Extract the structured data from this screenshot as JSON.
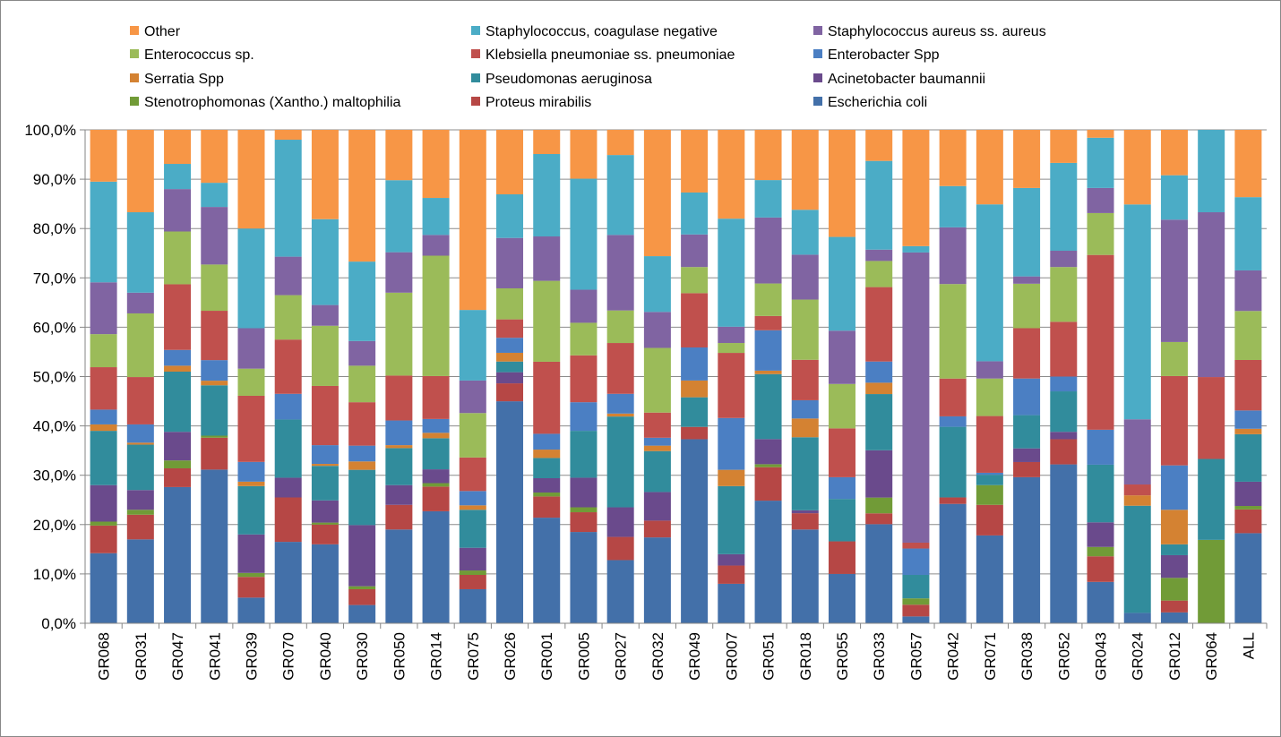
{
  "chart_data": {
    "type": "bar",
    "stacked": true,
    "percent": true,
    "ylim": [
      0,
      100
    ],
    "yticks": [
      "0,0%",
      "10,0%",
      "20,0%",
      "30,0%",
      "40,0%",
      "50,0%",
      "60,0%",
      "70,0%",
      "80,0%",
      "90,0%",
      "100,0%"
    ],
    "grid": true,
    "legend_position": "top",
    "categories": [
      "GR068",
      "GR031",
      "GR047",
      "GR041",
      "GR039",
      "GR070",
      "GR040",
      "GR030",
      "GR050",
      "GR014",
      "GR075",
      "GR026",
      "GR001",
      "GR005",
      "GR027",
      "GR032",
      "GR049",
      "GR007",
      "GR051",
      "GR018",
      "GR055",
      "GR033",
      "GR057",
      "GR042",
      "GR071",
      "GR038",
      "GR052",
      "GR043",
      "GR024",
      "GR012",
      "GR064",
      "ALL"
    ],
    "series": [
      {
        "name": "Escherichia coli",
        "color": "#4370a9",
        "values": [
          14.2,
          17,
          27.6,
          29.9,
          5.2,
          16.5,
          16,
          3.7,
          19,
          22.7,
          6.9,
          45.8,
          21.4,
          18.5,
          12.8,
          17.4,
          37.3,
          8,
          24.9,
          19,
          10,
          20.1,
          1.4,
          24,
          17.8,
          29.9,
          32.2,
          8.4,
          2.1,
          2.2,
          0,
          18.2
        ]
      },
      {
        "name": "Proteus mirabilis",
        "color": "#b64745",
        "values": [
          5.6,
          5,
          3.8,
          6.2,
          4.2,
          9,
          4,
          3.2,
          5,
          5,
          2.9,
          3.7,
          4.3,
          4,
          4.7,
          3.4,
          2.5,
          3.7,
          6.8,
          3.3,
          6.6,
          2.2,
          2.4,
          1.3,
          6.2,
          3.1,
          5.1,
          5.2,
          0,
          2.4,
          0,
          4.8
        ]
      },
      {
        "name": "Stenotrophomonas (Xantho.) maltophilia",
        "color": "#719b37",
        "values": [
          0.8,
          1,
          1.6,
          0.4,
          0.8,
          0,
          0.4,
          0.6,
          0,
          0.7,
          0.9,
          0,
          0.8,
          1,
          0,
          0,
          0,
          0,
          0.6,
          0,
          0,
          3.2,
          1.3,
          0,
          4,
          0,
          0,
          1.9,
          0,
          4.6,
          16.9,
          0.7
        ]
      },
      {
        "name": "Acinetobacter baumannii",
        "color": "#6a4a8c",
        "values": [
          7.4,
          4,
          5.8,
          0,
          7.8,
          4,
          4.5,
          12.4,
          4,
          2.8,
          4.6,
          2.3,
          2.9,
          6,
          6,
          5.8,
          0,
          2.3,
          5.1,
          0.6,
          0,
          9.6,
          0,
          0,
          0,
          2.8,
          1.5,
          5,
          0,
          4.6,
          0,
          4.9
        ]
      },
      {
        "name": "Pseudomonas aeruginosa",
        "color": "#318c9c",
        "values": [
          11,
          9.2,
          12.2,
          9.8,
          9.8,
          11.8,
          7,
          11.2,
          7.5,
          6.3,
          7.7,
          2.2,
          4.1,
          9.5,
          18.4,
          8.3,
          6,
          13.8,
          13.2,
          14.8,
          8.6,
          11.4,
          4.8,
          14.2,
          2.1,
          6.8,
          8.2,
          11.7,
          21.7,
          2.2,
          16.4,
          9.6
        ]
      },
      {
        "name": "Serratia Spp",
        "color": "#d48232",
        "values": [
          1.3,
          0.4,
          1.2,
          0.9,
          0.9,
          0,
          0.4,
          1.7,
          0.6,
          1.1,
          0.9,
          1.8,
          1.7,
          0,
          0.6,
          1.1,
          3.4,
          3.3,
          0.7,
          3.8,
          0,
          2.3,
          0,
          0,
          0,
          0,
          0,
          0,
          2.1,
          7,
          0,
          1.1
        ]
      },
      {
        "name": "Enterobacter Spp",
        "color": "#4b7fc3",
        "values": [
          3,
          3.7,
          3.2,
          4,
          4,
          5.2,
          3.8,
          3.2,
          5,
          2.8,
          2.9,
          3.1,
          3.2,
          5.8,
          4,
          1.6,
          6.7,
          10.5,
          8.2,
          3.7,
          4.4,
          4.3,
          5.4,
          2.1,
          0.4,
          7.5,
          3,
          7.1,
          0,
          9,
          0,
          3.7
        ]
      },
      {
        "name": "Klebsiella pneumoniae ss. pneumoniae",
        "color": "#c0504d",
        "values": [
          8.6,
          9.6,
          13.3,
          9.6,
          13.4,
          11,
          12,
          8.8,
          9.1,
          8.7,
          6.8,
          3.8,
          14.6,
          9.5,
          10.3,
          5.1,
          11,
          13.2,
          2.9,
          8.2,
          9.9,
          15.1,
          1.2,
          7.6,
          11.5,
          10.3,
          11.1,
          35.5,
          2.2,
          18.1,
          16.6,
          10.2
        ]
      },
      {
        "name": "Enterococcus sp.",
        "color": "#9bbb59",
        "values": [
          6.7,
          12.9,
          10.7,
          9,
          5.5,
          9,
          12.2,
          7.4,
          16.8,
          24.4,
          9,
          6.4,
          16.4,
          6.6,
          6.6,
          13.1,
          5.3,
          2,
          6.6,
          12.2,
          9,
          5.3,
          0,
          19,
          7.6,
          9.1,
          11.1,
          8.5,
          0,
          6.9,
          0,
          9.9
        ]
      },
      {
        "name": "Staphylococcus aureus ss. aureus",
        "color": "#8064a2",
        "values": [
          10.5,
          4.2,
          8.6,
          11.2,
          8.2,
          7.8,
          4.2,
          5,
          8.2,
          4.2,
          6.6,
          10.4,
          9,
          6.7,
          15.3,
          7.3,
          6.6,
          3.3,
          13.4,
          9.1,
          10.8,
          2.3,
          59.4,
          11.4,
          3.5,
          1.5,
          3.3,
          5.1,
          13.2,
          24.8,
          33.4,
          8.2
        ]
      },
      {
        "name": "Staphylococcus, coagulase negative",
        "color": "#4bacc6",
        "values": [
          20.4,
          16.3,
          5.1,
          4.7,
          20.2,
          23.7,
          17.4,
          16.1,
          14.6,
          7.5,
          14.3,
          9,
          16.7,
          22.5,
          16.2,
          11.3,
          8.5,
          21.9,
          7.6,
          9.1,
          19,
          18,
          1.3,
          8.3,
          31.8,
          18.1,
          17.8,
          10.2,
          43.5,
          9,
          16.7,
          14.8
        ]
      },
      {
        "name": "Other",
        "color": "#f79646",
        "values": [
          10.5,
          16.7,
          6.9,
          10.3,
          20,
          2,
          18.1,
          26.7,
          10.2,
          13.8,
          36.5,
          13.3,
          4.9,
          9.9,
          5.1,
          25.6,
          12.7,
          18,
          10.2,
          16.2,
          21.7,
          6.3,
          23.8,
          11.3,
          15.1,
          11.9,
          6.7,
          1.6,
          15.1,
          9.2,
          0,
          13.6
        ]
      }
    ],
    "legend_rows": [
      [
        "Other",
        "Staphylococcus, coagulase negative",
        "Staphylococcus aureus ss. aureus"
      ],
      [
        "Enterococcus sp.",
        "Klebsiella pneumoniae ss. pneumoniae",
        "Enterobacter Spp"
      ],
      [
        "Serratia Spp",
        "Pseudomonas aeruginosa",
        "Acinetobacter baumannii"
      ],
      [
        "Stenotrophomonas (Xantho.) maltophilia",
        "Proteus mirabilis",
        "Escherichia coli"
      ]
    ]
  }
}
